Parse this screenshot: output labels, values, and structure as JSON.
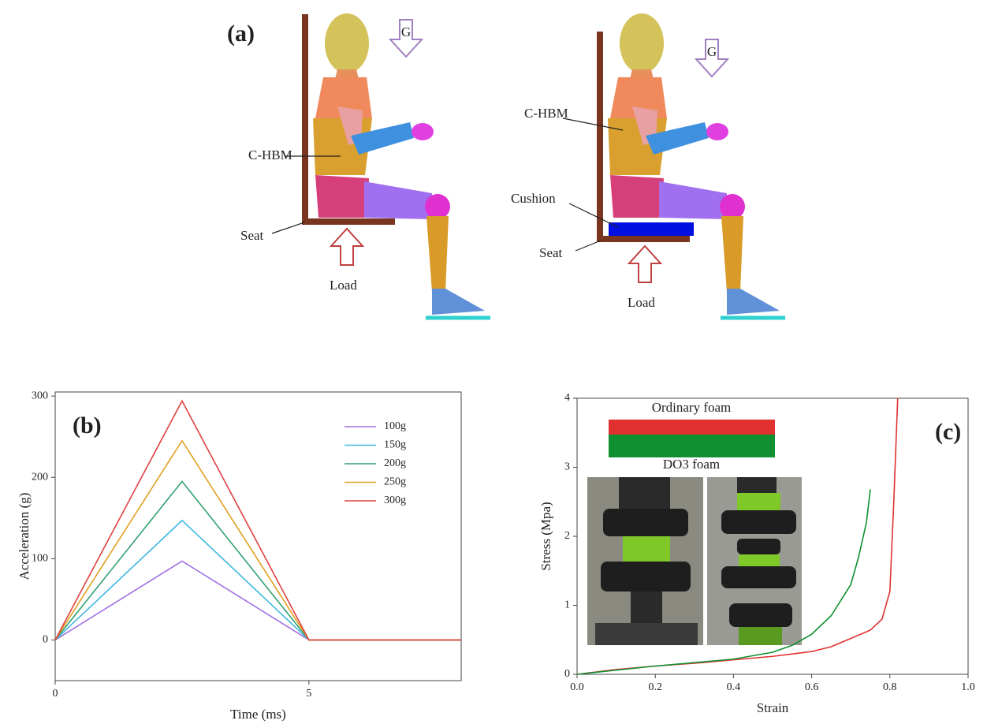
{
  "panel_a": {
    "label": "(a)",
    "left": {
      "gravity": "G",
      "body": "C-HBM",
      "seat": "Seat",
      "load": "Load"
    },
    "right": {
      "gravity": "G",
      "body": "C-HBM",
      "cushion": "Cushion",
      "seat": "Seat",
      "load": "Load"
    }
  },
  "chart_data": [
    {
      "type": "line",
      "panel_label": "(b)",
      "x_label": "Time (ms)",
      "y_label": "Acceleration (g)",
      "x": [
        0,
        2.5,
        5,
        8
      ],
      "series": [
        {
          "name": "100g",
          "color": "#a070e0",
          "values": [
            0,
            97,
            0,
            0
          ]
        },
        {
          "name": "150g",
          "color": "#40b8e0",
          "values": [
            0,
            147,
            0,
            0
          ]
        },
        {
          "name": "200g",
          "color": "#30a070",
          "values": [
            0,
            195,
            0,
            0
          ]
        },
        {
          "name": "250g",
          "color": "#e0a020",
          "values": [
            0,
            245,
            0,
            0
          ]
        },
        {
          "name": "300g",
          "color": "#e04040",
          "values": [
            0,
            294,
            0,
            0
          ]
        }
      ],
      "xlim": [
        0,
        8
      ],
      "xticks": [
        0,
        5
      ],
      "ylim": [
        -50,
        305
      ],
      "yticks": [
        0,
        100,
        200,
        300
      ],
      "legend": "upper right"
    },
    {
      "type": "line",
      "panel_label": "(c)",
      "x_label": "Strain",
      "y_label": "Stress (Mpa)",
      "series": [
        {
          "name": "Ordinary foam",
          "color": "#e03030",
          "x": [
            0,
            0.1,
            0.2,
            0.3,
            0.4,
            0.5,
            0.6,
            0.65,
            0.7,
            0.75,
            0.78,
            0.8,
            0.81,
            0.82
          ],
          "values": [
            0,
            0.07,
            0.12,
            0.16,
            0.21,
            0.26,
            0.33,
            0.4,
            0.52,
            0.64,
            0.8,
            1.2,
            2.5,
            4.0
          ]
        },
        {
          "name": "DO3 foam",
          "color": "#109030",
          "x": [
            0,
            0.1,
            0.2,
            0.3,
            0.4,
            0.5,
            0.55,
            0.6,
            0.65,
            0.7,
            0.72,
            0.74,
            0.75
          ],
          "values": [
            0,
            0.06,
            0.12,
            0.17,
            0.22,
            0.32,
            0.42,
            0.58,
            0.85,
            1.3,
            1.7,
            2.2,
            2.68
          ]
        }
      ],
      "xlim": [
        0,
        1.0
      ],
      "xticks": [
        {
          "value": 0,
          "label": "0.0"
        },
        0.2,
        0.4,
        0.6,
        0.8,
        {
          "value": 1.0,
          "label": "1.0"
        }
      ],
      "ylim": [
        0,
        4
      ],
      "yticks": [
        0,
        1,
        2,
        3,
        4
      ]
    }
  ]
}
